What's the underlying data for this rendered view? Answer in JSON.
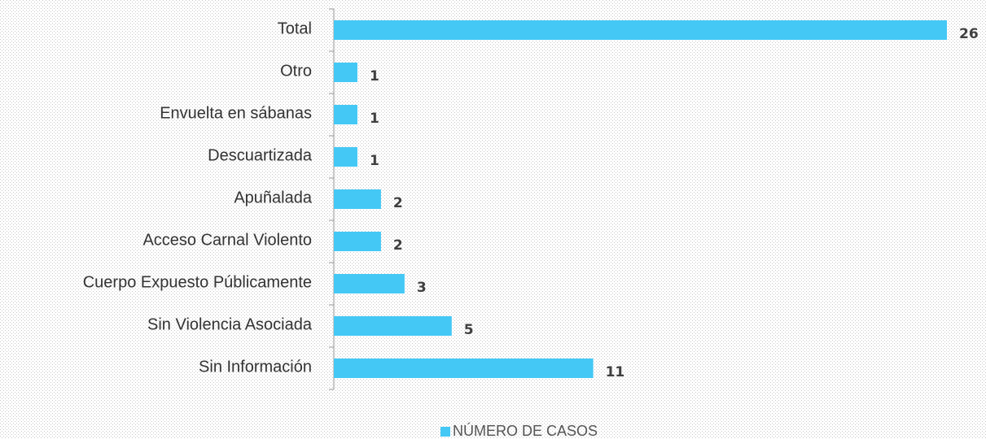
{
  "chart_data": {
    "type": "bar",
    "orientation": "horizontal",
    "categories": [
      "Total",
      "Otro",
      "Envuelta en sábanas",
      "Descuartizada",
      "Apuñalada",
      "Acceso Carnal Violento",
      "Cuerpo Expuesto Públicamente",
      "Sin Violencia Asociada",
      "Sin Información"
    ],
    "series": [
      {
        "name": "NÚMERO DE CASOS",
        "color": "#44c8f5",
        "values": [
          26,
          1,
          1,
          1,
          2,
          2,
          3,
          5,
          11
        ]
      }
    ],
    "legend": "bottom"
  }
}
